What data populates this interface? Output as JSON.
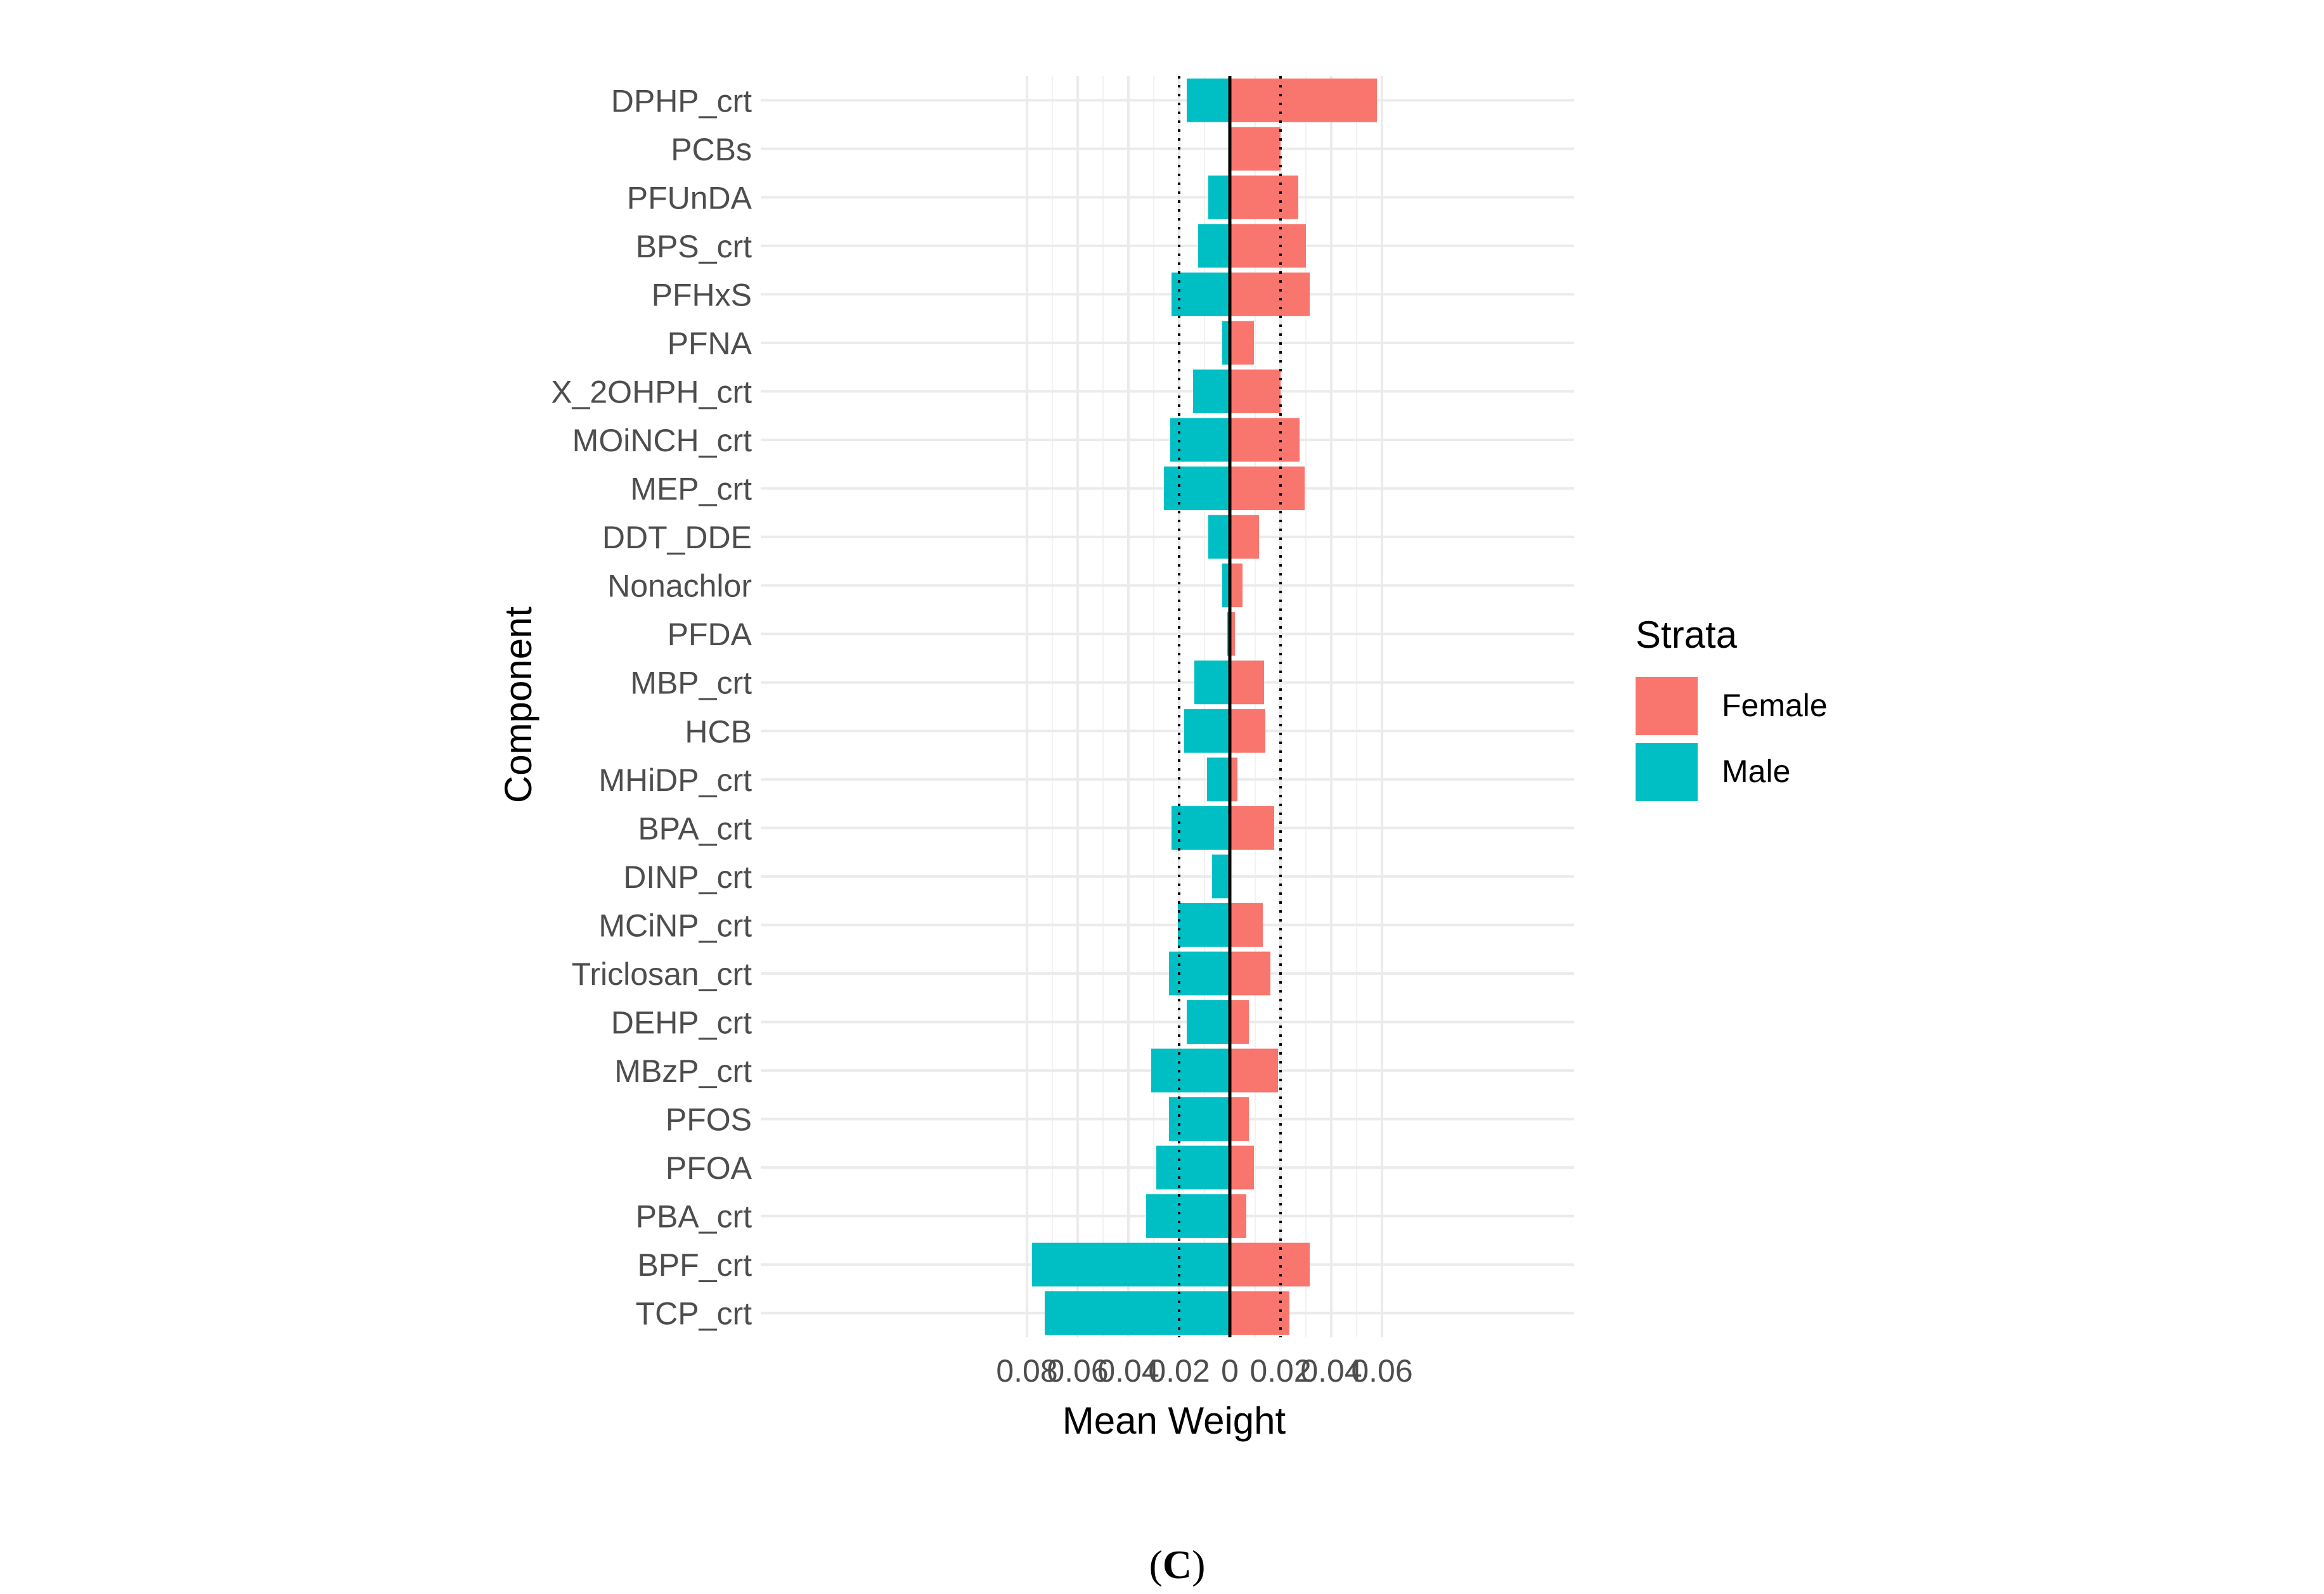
{
  "chart_data": {
    "type": "bar",
    "orientation": "horizontal-diverging",
    "categories": [
      "DPHP_crt",
      "PCBs",
      "PFUnDA",
      "BPS_crt",
      "PFHxS",
      "PFNA",
      "X_2OHPH_crt",
      "MOiNCH_crt",
      "MEP_crt",
      "DDT_DDE",
      "Nonachlor",
      "PFDA",
      "MBP_crt",
      "HCB",
      "MHiDP_crt",
      "BPA_crt",
      "DINP_crt",
      "MCiNP_crt",
      "Triclosan_crt",
      "DEHP_crt",
      "MBzP_crt",
      "PFOS",
      "PFOA",
      "PBA_crt",
      "BPF_crt",
      "TCP_crt"
    ],
    "series": [
      {
        "name": "Female",
        "color": "#F8766D",
        "values": [
          0.058,
          0.02,
          0.027,
          0.03,
          0.0315,
          0.0095,
          0.02,
          0.0275,
          0.0295,
          0.0115,
          0.005,
          0.002,
          0.0135,
          0.014,
          0.003,
          0.0175,
          0,
          0.013,
          0.016,
          0.0075,
          0.019,
          0.0075,
          0.0095,
          0.0065,
          0.0315,
          0.0235
        ]
      },
      {
        "name": "Male",
        "color": "#00BFC4",
        "values": [
          0.017,
          0,
          0.0085,
          0.0125,
          0.023,
          0.003,
          0.0145,
          0.0235,
          0.026,
          0.0085,
          0.003,
          0.001,
          0.014,
          0.018,
          0.009,
          0.023,
          0.007,
          0.0205,
          0.024,
          0.017,
          0.031,
          0.024,
          0.029,
          0.033,
          0.078,
          0.073
        ]
      }
    ],
    "xlabel": "Mean Weight",
    "ylabel": "Component",
    "xlim": [
      -0.085,
      0.065
    ],
    "x_ticks": [
      -0.08,
      -0.06,
      -0.04,
      -0.02,
      0,
      0.02,
      0.04,
      0.06
    ],
    "x_tick_labels": [
      "0.08",
      "0.06",
      "0.04",
      "0.02",
      "0",
      "0.02",
      "0.04",
      "0.06"
    ],
    "reference_lines": [
      -0.02,
      0.02
    ],
    "zero_line": 0,
    "legend": {
      "title": "Strata",
      "position": "right",
      "entries": [
        "Female",
        "Male"
      ]
    },
    "grid": true
  },
  "panel_label": {
    "open": "(",
    "letter": "C",
    "close": ")"
  }
}
